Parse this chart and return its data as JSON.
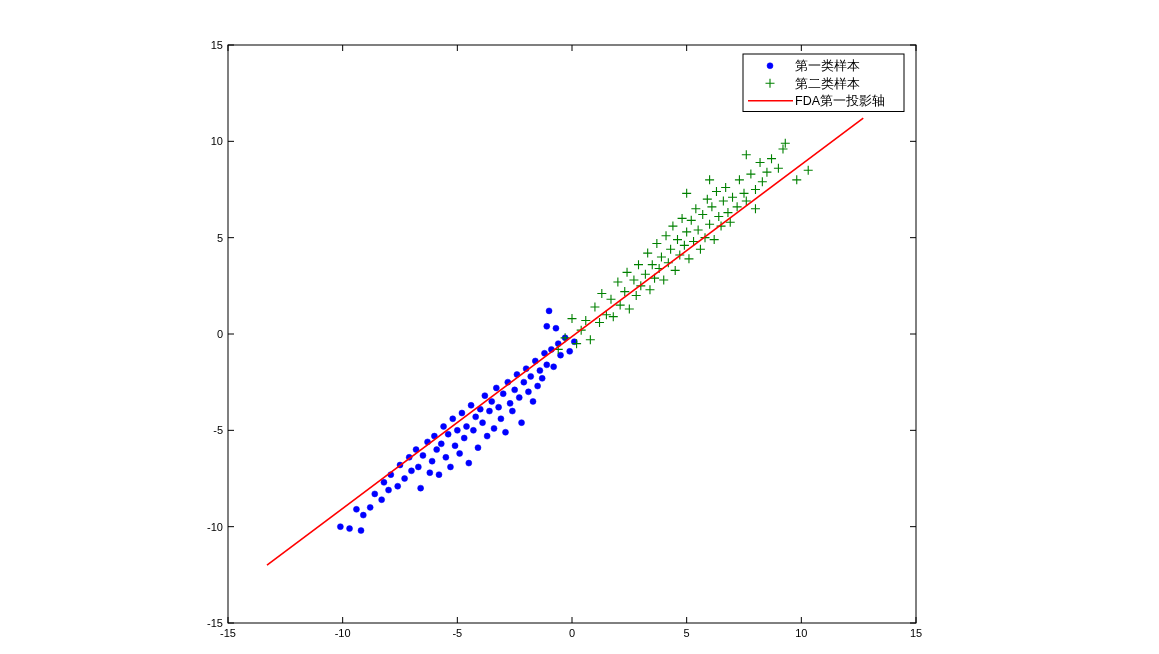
{
  "chart_data": {
    "type": "scatter",
    "xlim": [
      -15,
      15
    ],
    "ylim": [
      -15,
      15
    ],
    "xticks": [
      -15,
      -10,
      -5,
      0,
      5,
      10,
      15
    ],
    "yticks": [
      -15,
      -10,
      -5,
      0,
      5,
      10,
      15
    ],
    "grid": false,
    "legend": "top right",
    "series": [
      {
        "name": "第一类样本",
        "color": "#0000ff",
        "marker": "circle",
        "x": [
          -10.1,
          -9.7,
          -9.2,
          -9.4,
          -9.1,
          -8.8,
          -8.6,
          -8.3,
          -8.0,
          -8.2,
          -7.9,
          -7.6,
          -7.5,
          -7.3,
          -7.1,
          -7.0,
          -6.8,
          -6.7,
          -6.6,
          -6.5,
          -6.3,
          -6.2,
          -6.1,
          -6.0,
          -5.9,
          -5.8,
          -5.7,
          -5.6,
          -5.5,
          -5.4,
          -5.3,
          -5.2,
          -5.1,
          -5.0,
          -4.9,
          -4.8,
          -4.7,
          -4.6,
          -4.5,
          -4.4,
          -4.3,
          -4.2,
          -4.1,
          -4.0,
          -3.9,
          -3.8,
          -3.7,
          -3.6,
          -3.5,
          -3.4,
          -3.3,
          -3.2,
          -3.1,
          -3.0,
          -2.9,
          -2.8,
          -2.7,
          -2.6,
          -2.5,
          -2.4,
          -2.3,
          -2.2,
          -2.1,
          -2.0,
          -1.9,
          -1.8,
          -1.7,
          -1.6,
          -1.5,
          -1.4,
          -1.3,
          -1.2,
          -1.1,
          -1.0,
          -0.9,
          -0.8,
          -0.6,
          -0.5,
          -0.3,
          -0.1,
          0.1,
          -1.1,
          -0.7
        ],
        "values": [
          -10.0,
          -10.1,
          -10.2,
          -9.1,
          -9.4,
          -9.0,
          -8.3,
          -8.6,
          -8.1,
          -7.7,
          -7.3,
          -7.9,
          -6.8,
          -7.5,
          -6.4,
          -7.1,
          -6.0,
          -6.9,
          -8.0,
          -6.3,
          -5.6,
          -7.2,
          -6.6,
          -5.3,
          -6.0,
          -7.3,
          -5.7,
          -4.8,
          -6.4,
          -5.2,
          -6.9,
          -4.4,
          -5.8,
          -5.0,
          -6.2,
          -4.1,
          -5.4,
          -4.8,
          -6.7,
          -3.7,
          -5.0,
          -4.3,
          -5.9,
          -3.9,
          -4.6,
          -3.2,
          -5.3,
          -4.0,
          -3.5,
          -4.9,
          -2.8,
          -3.8,
          -4.4,
          -3.1,
          -5.1,
          -2.5,
          -3.6,
          -4.0,
          -2.9,
          -2.1,
          -3.3,
          -4.6,
          -2.5,
          -1.8,
          -3.0,
          -2.2,
          -3.5,
          -1.4,
          -2.7,
          -1.9,
          -2.3,
          -1.0,
          -1.6,
          1.2,
          -0.8,
          -1.7,
          -0.5,
          -1.1,
          -0.2,
          -0.9,
          -0.4,
          0.4,
          0.3
        ]
      },
      {
        "name": "第二类样本",
        "color": "#008000",
        "marker": "cross",
        "x": [
          -0.6,
          -0.3,
          0.0,
          0.2,
          0.4,
          0.6,
          0.8,
          1.0,
          1.2,
          1.3,
          1.5,
          1.7,
          1.8,
          2.0,
          2.1,
          2.3,
          2.4,
          2.5,
          2.7,
          2.8,
          2.9,
          3.0,
          3.2,
          3.3,
          3.4,
          3.5,
          3.6,
          3.7,
          3.8,
          3.9,
          4.0,
          4.1,
          4.2,
          4.3,
          4.4,
          4.5,
          4.6,
          4.7,
          4.8,
          4.9,
          5.0,
          5.1,
          5.2,
          5.3,
          5.4,
          5.5,
          5.6,
          5.7,
          5.8,
          5.9,
          6.0,
          6.1,
          6.2,
          6.3,
          6.4,
          6.5,
          6.6,
          6.7,
          6.8,
          6.9,
          7.0,
          7.2,
          7.3,
          7.5,
          7.6,
          7.8,
          8.0,
          8.2,
          8.3,
          8.5,
          8.7,
          9.0,
          9.2,
          9.3,
          9.8,
          10.3,
          7.6,
          8.0,
          5.0,
          6.0
        ],
        "values": [
          -0.8,
          -0.2,
          0.8,
          -0.5,
          0.2,
          0.7,
          -0.3,
          1.4,
          0.6,
          2.1,
          1.0,
          1.8,
          0.9,
          2.7,
          1.5,
          2.2,
          3.2,
          1.3,
          2.8,
          2.0,
          3.6,
          2.5,
          3.1,
          4.2,
          2.3,
          3.6,
          2.9,
          4.7,
          3.4,
          4.0,
          2.8,
          5.1,
          3.7,
          4.4,
          5.6,
          3.3,
          4.9,
          4.1,
          6.0,
          4.6,
          5.3,
          3.9,
          5.9,
          4.8,
          6.5,
          5.4,
          4.4,
          6.2,
          5.0,
          7.0,
          5.7,
          6.6,
          4.9,
          7.4,
          6.1,
          5.6,
          6.9,
          7.6,
          6.3,
          5.8,
          7.1,
          6.6,
          8.0,
          7.3,
          6.9,
          8.3,
          7.5,
          8.9,
          7.9,
          8.4,
          9.1,
          8.6,
          9.6,
          9.9,
          8.0,
          8.5,
          9.3,
          6.5,
          7.3,
          8.0
        ]
      },
      {
        "name": "FDA第一投影轴",
        "type": "line",
        "color": "#ff0000",
        "marker": "none",
        "x": [
          -13.3,
          12.7
        ],
        "values": [
          -12.0,
          11.2
        ]
      }
    ]
  }
}
